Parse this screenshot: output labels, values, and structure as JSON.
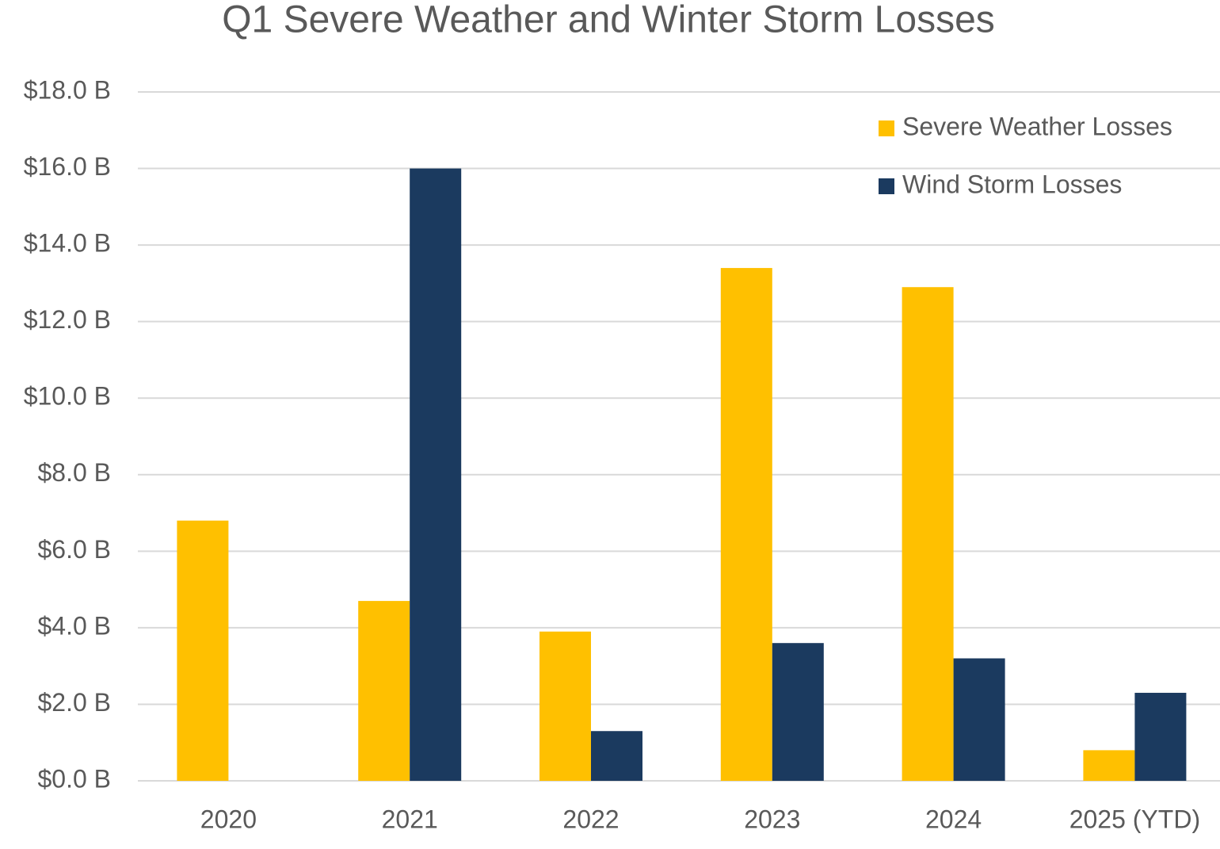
{
  "chart_data": {
    "type": "bar",
    "title": "Q1 Severe Weather and Winter Storm Losses",
    "categories": [
      "2020",
      "2021",
      "2022",
      "2023",
      "2024",
      "2025 (YTD)"
    ],
    "series": [
      {
        "name": "Severe Weather Losses",
        "color": "#FFC000",
        "values": [
          6.8,
          4.7,
          3.9,
          13.4,
          12.9,
          0.8
        ]
      },
      {
        "name": "Wind Storm Losses",
        "color": "#1B3A5F",
        "values": [
          0,
          16.0,
          1.3,
          3.6,
          3.2,
          2.3
        ]
      }
    ],
    "ylim": [
      0,
      18
    ],
    "yticks": [
      {
        "value": 0,
        "label": "$0.0 B"
      },
      {
        "value": 2,
        "label": "$2.0 B"
      },
      {
        "value": 4,
        "label": "$4.0 B"
      },
      {
        "value": 6,
        "label": "$6.0 B"
      },
      {
        "value": 8,
        "label": "$8.0 B"
      },
      {
        "value": 10,
        "label": "$10.0 B"
      },
      {
        "value": 12,
        "label": "$12.0 B"
      },
      {
        "value": 14,
        "label": "$14.0 B"
      },
      {
        "value": 16,
        "label": "$16.0 B"
      },
      {
        "value": 18,
        "label": "$18.0 B"
      }
    ],
    "grid": true,
    "legend": "top-right"
  }
}
